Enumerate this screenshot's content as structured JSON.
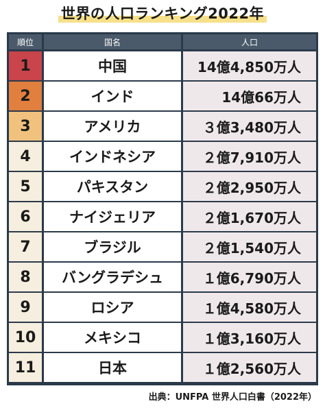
{
  "title": "世界の人口ランキング2022年",
  "colors": {
    "highlight": "#f7e08a",
    "table_border": "#2b3a4a",
    "header_bg": "#4a5a6a",
    "rank_default_bg": "#f6eede",
    "population_bg": "#efe8ea",
    "rank1_bg": "#c9444b",
    "rank2_bg": "#e07f3e",
    "rank3_bg": "#f0c27e"
  },
  "table": {
    "headers": {
      "rank": "順位",
      "country": "国名",
      "population": "人口"
    },
    "rows": [
      {
        "rank": "1",
        "country": "中国",
        "population": "14億4,850万人",
        "rank_color": "#c9444b"
      },
      {
        "rank": "2",
        "country": "インド",
        "population": "14億66万人",
        "rank_color": "#e07f3e"
      },
      {
        "rank": "3",
        "country": "アメリカ",
        "population": "３億3,480万人",
        "rank_color": "#f0c27e"
      },
      {
        "rank": "4",
        "country": "インドネシア",
        "population": "２億7,910万人"
      },
      {
        "rank": "5",
        "country": "パキスタン",
        "population": "２億2,950万人"
      },
      {
        "rank": "6",
        "country": "ナイジェリア",
        "population": "２億1,670万人"
      },
      {
        "rank": "7",
        "country": "ブラジル",
        "population": "２億1,540万人"
      },
      {
        "rank": "8",
        "country": "バングラデシュ",
        "population": "１億6,790万人"
      },
      {
        "rank": "9",
        "country": "ロシア",
        "population": "１億4,580万人"
      },
      {
        "rank": "10",
        "country": "メキシコ",
        "population": "１億3,160万人"
      },
      {
        "rank": "11",
        "country": "日本",
        "population": "１億2,560万人"
      }
    ]
  },
  "source": "出典：UNFPA 世界人口白書（2022年）"
}
